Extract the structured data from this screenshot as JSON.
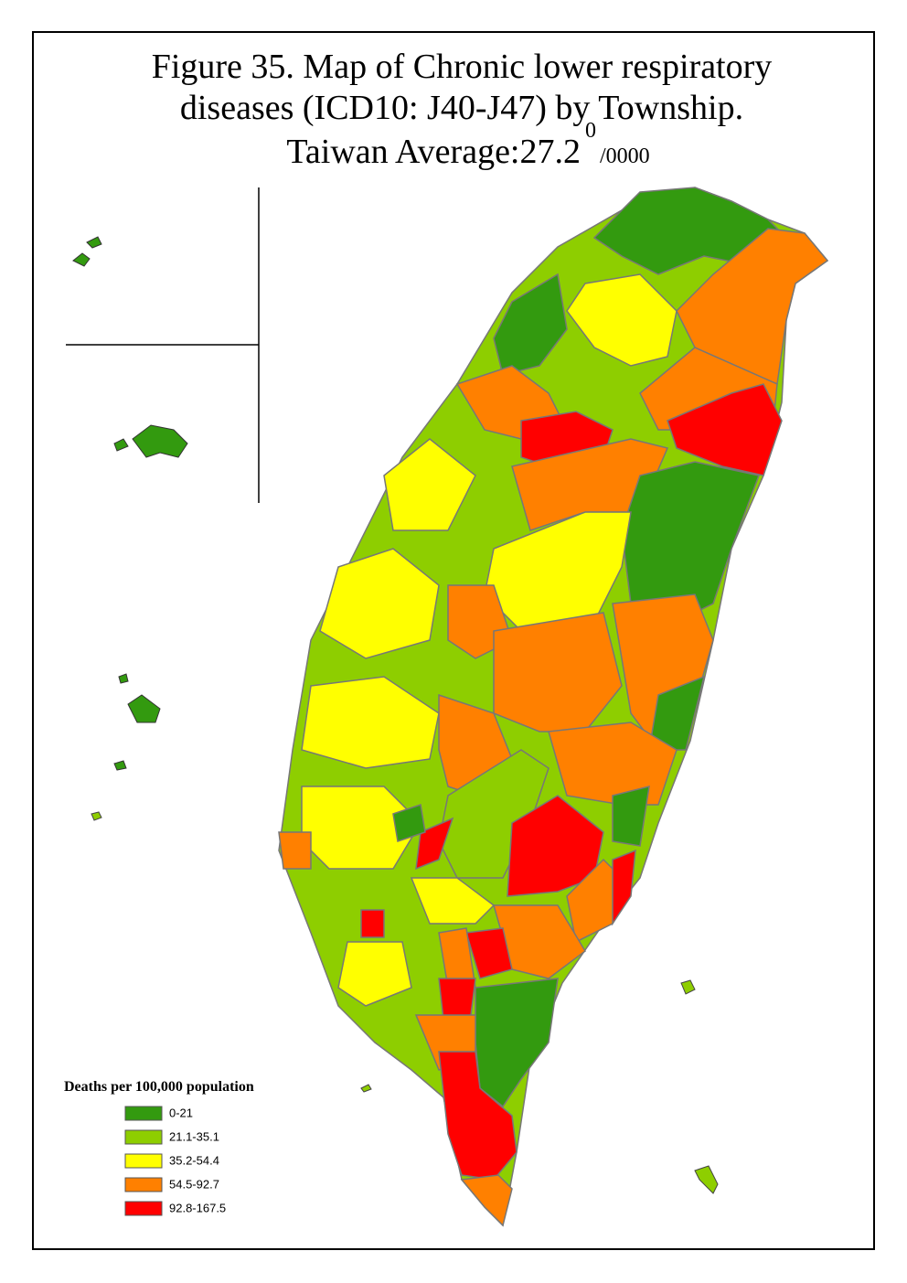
{
  "title": {
    "lines": [
      "Figure 35. Map of Chronic lower respiratory",
      "diseases (ICD10: J40-J47) by Township."
    ],
    "average_label": "Taiwan Average:27.2",
    "average_sup": "0",
    "average_unit": "/0000"
  },
  "legend": {
    "title": "Deaths per 100,000 population",
    "items": [
      {
        "label": "0-21",
        "color": "#339a0f"
      },
      {
        "label": "21.1-35.1",
        "color": "#8ece00"
      },
      {
        "label": "35.2-54.4",
        "color": "#ffff00"
      },
      {
        "label": "54.5-92.7",
        "color": "#ff8000"
      },
      {
        "label": "92.8-167.5",
        "color": "#ff0000"
      }
    ]
  }
}
